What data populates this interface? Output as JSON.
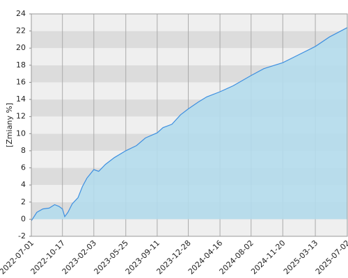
{
  "chart_data": {
    "type": "area",
    "y_label": "[Zmiany %]",
    "x": [
      "2022-07-01",
      "2022-07-20",
      "2022-08-10",
      "2022-09-01",
      "2022-09-20",
      "2022-10-05",
      "2022-10-17",
      "2022-10-25",
      "2022-11-05",
      "2022-11-20",
      "2022-12-10",
      "2022-12-25",
      "2023-01-10",
      "2023-02-03",
      "2023-02-20",
      "2023-03-15",
      "2023-04-15",
      "2023-05-25",
      "2023-07-01",
      "2023-08-01",
      "2023-09-11",
      "2023-10-01",
      "2023-11-01",
      "2023-12-01",
      "2023-12-28",
      "2024-02-01",
      "2024-03-01",
      "2024-04-16",
      "2024-06-01",
      "2024-08-02",
      "2024-09-15",
      "2024-11-20",
      "2025-01-01",
      "2025-03-13",
      "2025-05-01",
      "2025-07-02"
    ],
    "values": [
      -0.2,
      0.8,
      1.2,
      1.3,
      1.7,
      1.5,
      1.2,
      0.3,
      0.8,
      1.8,
      2.5,
      3.8,
      4.8,
      5.8,
      5.6,
      6.4,
      7.2,
      8.0,
      8.6,
      9.5,
      10.1,
      10.7,
      11.1,
      12.2,
      12.9,
      13.7,
      14.3,
      14.9,
      15.6,
      16.8,
      17.6,
      18.3,
      19.0,
      20.2,
      21.3,
      22.4
    ],
    "color": "#3d8fe0",
    "fill": "#b4dcec",
    "xlim": [
      "2022-07-01",
      "2025-07-02"
    ],
    "xticks": [
      "2022-07-01",
      "2022-10-17",
      "2023-02-03",
      "2023-05-25",
      "2023-09-11",
      "2023-12-28",
      "2024-04-16",
      "2024-08-02",
      "2024-11-20",
      "2025-03-13",
      "2025-07-02"
    ],
    "ylim": [
      -2,
      24
    ],
    "yticks": [
      -2,
      0,
      2,
      4,
      6,
      8,
      10,
      12,
      14,
      16,
      18,
      20,
      22,
      24
    ],
    "grid": true
  }
}
